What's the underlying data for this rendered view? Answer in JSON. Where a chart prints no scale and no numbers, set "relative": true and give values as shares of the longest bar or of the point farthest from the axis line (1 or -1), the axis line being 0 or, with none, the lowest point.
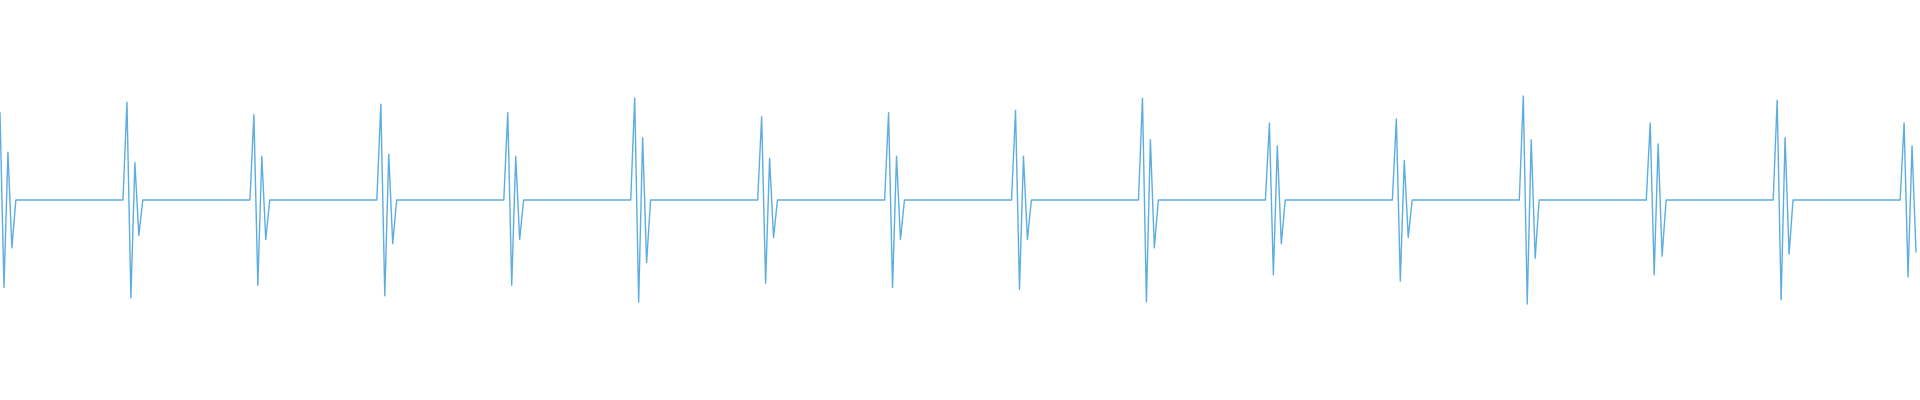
{
  "chart_data": {
    "type": "line",
    "relative": true,
    "categories": [
      null,
      null,
      null,
      null,
      null,
      null,
      null,
      null,
      null,
      null,
      null,
      null,
      null,
      null,
      null,
      null,
      null,
      null,
      null,
      null,
      null,
      null,
      null,
      null,
      null,
      null,
      null,
      null,
      null,
      null,
      null,
      null,
      null,
      null,
      null,
      null,
      null,
      null,
      null,
      null,
      null,
      null,
      null,
      null,
      null,
      null,
      null,
      null,
      null,
      null,
      null,
      null,
      null,
      null,
      null,
      null,
      null,
      null,
      null,
      null,
      null,
      null,
      null,
      null,
      null,
      null,
      null,
      null,
      null,
      null,
      null,
      null,
      null,
      null,
      null,
      null,
      null,
      null,
      null,
      null,
      null,
      null,
      null,
      null,
      null,
      null,
      null,
      null,
      null,
      null,
      null,
      null,
      null,
      null,
      null,
      null,
      null,
      null,
      null,
      null,
      null,
      null,
      null,
      null,
      null,
      null,
      null,
      null,
      null,
      null,
      null,
      null,
      null,
      null,
      null,
      null,
      null,
      null,
      null,
      null,
      null,
      null,
      null,
      null,
      null,
      null,
      null,
      null,
      null,
      null,
      null,
      null,
      null,
      null,
      null,
      null,
      null,
      null,
      null,
      null,
      null,
      null,
      null,
      null,
      null,
      null,
      null,
      null,
      null,
      null,
      null,
      null,
      null,
      null,
      null,
      null,
      null,
      null,
      null,
      null,
      null,
      null,
      null,
      null,
      null,
      null,
      null,
      null,
      null,
      null,
      null,
      null,
      null,
      null,
      null,
      null,
      null,
      null,
      null,
      null,
      null,
      null,
      null,
      null,
      null,
      null,
      null,
      null,
      null,
      null,
      null,
      null,
      null,
      null,
      null,
      null,
      null,
      null,
      null,
      null,
      null,
      null,
      null,
      null,
      null,
      null,
      null,
      null,
      null,
      null,
      null,
      null,
      null,
      null,
      null,
      null,
      null,
      null,
      null,
      null,
      null,
      null,
      null,
      null,
      null,
      null,
      null,
      null,
      null,
      null,
      null,
      null,
      null,
      null,
      null,
      null,
      null,
      null,
      null,
      null,
      null,
      null,
      null,
      null,
      null,
      null,
      null,
      null,
      null,
      null,
      null,
      null,
      null,
      null,
      null,
      null,
      null,
      null,
      null,
      null,
      null,
      null,
      null,
      null,
      null,
      null,
      null,
      null,
      null,
      null,
      null,
      null,
      null,
      null,
      null,
      null,
      null,
      null,
      null,
      null,
      null,
      null,
      null,
      null,
      null,
      null,
      null,
      null,
      null,
      null,
      null,
      null,
      null,
      null,
      null,
      null,
      null,
      null,
      null,
      null,
      null,
      null,
      null,
      null,
      null,
      null,
      null,
      null,
      null,
      null,
      null,
      null,
      null,
      null,
      null,
      null,
      null,
      null,
      null,
      null,
      null,
      null,
      null,
      null,
      null,
      null,
      null,
      null,
      null,
      null,
      null,
      null,
      null,
      null,
      null,
      null,
      null,
      null,
      null,
      null,
      null,
      null,
      null,
      null,
      null,
      null,
      null,
      null,
      null,
      null,
      null,
      null,
      null,
      null,
      null,
      null,
      null,
      null,
      null,
      null,
      null,
      null,
      null,
      null,
      null,
      null,
      null,
      null,
      null,
      null,
      null,
      null,
      null,
      null,
      null,
      null,
      null,
      null,
      null,
      null,
      null,
      null,
      null,
      null,
      null,
      null,
      null,
      null,
      null,
      null,
      null,
      null,
      null,
      null,
      null,
      null,
      null,
      null,
      null,
      null,
      null,
      null,
      null,
      null,
      null,
      null,
      null,
      null,
      null,
      null,
      null,
      null,
      null,
      null,
      null,
      null,
      null,
      null,
      null,
      null,
      null,
      null,
      null,
      null,
      null,
      null,
      null,
      null,
      null,
      null,
      null,
      null,
      null,
      null,
      null,
      null,
      null,
      null,
      null,
      null,
      null,
      null,
      null,
      null,
      null,
      null,
      null,
      null,
      null,
      null,
      null,
      null,
      null,
      null,
      null,
      null,
      null,
      null,
      null,
      null,
      null,
      null,
      null,
      null,
      null,
      null,
      null,
      null,
      null,
      null,
      null,
      null,
      null,
      null,
      null,
      null,
      null,
      null,
      null,
      null,
      null,
      null,
      null,
      null
    ],
    "series": [
      {
        "color": "#5dade2",
        "values": [
          0.92,
          0.08,
          0.73,
          0.27,
          0.5,
          0.5,
          0.5,
          0.5,
          0.5,
          0.5,
          0.5,
          0.5,
          0.5,
          0.5,
          0.5,
          0.5,
          0.5,
          0.5,
          0.5,
          0.5,
          0.5,
          0.5,
          0.5,
          0.5,
          0.5,
          0.5,
          0.5,
          0.5,
          0.5,
          0.5,
          0.5,
          0.5,
          0.97,
          0.03,
          0.68,
          0.33,
          0.5,
          0.5,
          0.5,
          0.5,
          0.5,
          0.5,
          0.5,
          0.5,
          0.5,
          0.5,
          0.5,
          0.5,
          0.5,
          0.5,
          0.5,
          0.5,
          0.5,
          0.5,
          0.5,
          0.5,
          0.5,
          0.5,
          0.5,
          0.5,
          0.5,
          0.5,
          0.5,
          0.5,
          0.91,
          0.09,
          0.71,
          0.31,
          0.5,
          0.5,
          0.5,
          0.5,
          0.5,
          0.5,
          0.5,
          0.5,
          0.5,
          0.5,
          0.5,
          0.5,
          0.5,
          0.5,
          0.5,
          0.5,
          0.5,
          0.5,
          0.5,
          0.5,
          0.5,
          0.5,
          0.5,
          0.5,
          0.5,
          0.5,
          0.5,
          0.5,
          0.96,
          0.04,
          0.72,
          0.29,
          0.5,
          0.5,
          0.5,
          0.5,
          0.5,
          0.5,
          0.5,
          0.5,
          0.5,
          0.5,
          0.5,
          0.5,
          0.5,
          0.5,
          0.5,
          0.5,
          0.5,
          0.5,
          0.5,
          0.5,
          0.5,
          0.5,
          0.5,
          0.5,
          0.5,
          0.5,
          0.5,
          0.5,
          0.92,
          0.09,
          0.71,
          0.31,
          0.5,
          0.5,
          0.5,
          0.5,
          0.5,
          0.5,
          0.5,
          0.5,
          0.5,
          0.5,
          0.5,
          0.5,
          0.5,
          0.5,
          0.5,
          0.5,
          0.5,
          0.5,
          0.5,
          0.5,
          0.5,
          0.5,
          0.5,
          0.5,
          0.5,
          0.5,
          0.5,
          0.5,
          0.99,
          0.01,
          0.8,
          0.2,
          0.5,
          0.5,
          0.5,
          0.5,
          0.5,
          0.5,
          0.5,
          0.5,
          0.5,
          0.5,
          0.5,
          0.5,
          0.5,
          0.5,
          0.5,
          0.5,
          0.5,
          0.5,
          0.5,
          0.5,
          0.5,
          0.5,
          0.5,
          0.5,
          0.5,
          0.5,
          0.5,
          0.5,
          0.9,
          0.1,
          0.7,
          0.32,
          0.5,
          0.5,
          0.5,
          0.5,
          0.5,
          0.5,
          0.5,
          0.5,
          0.5,
          0.5,
          0.5,
          0.5,
          0.5,
          0.5,
          0.5,
          0.5,
          0.5,
          0.5,
          0.5,
          0.5,
          0.5,
          0.5,
          0.5,
          0.5,
          0.5,
          0.5,
          0.5,
          0.5,
          0.92,
          0.08,
          0.71,
          0.31,
          0.5,
          0.5,
          0.5,
          0.5,
          0.5,
          0.5,
          0.5,
          0.5,
          0.5,
          0.5,
          0.5,
          0.5,
          0.5,
          0.5,
          0.5,
          0.5,
          0.5,
          0.5,
          0.5,
          0.5,
          0.5,
          0.5,
          0.5,
          0.5,
          0.5,
          0.5,
          0.5,
          0.5,
          0.93,
          0.07,
          0.71,
          0.31,
          0.5,
          0.5,
          0.5,
          0.5,
          0.5,
          0.5,
          0.5,
          0.5,
          0.5,
          0.5,
          0.5,
          0.5,
          0.5,
          0.5,
          0.5,
          0.5,
          0.5,
          0.5,
          0.5,
          0.5,
          0.5,
          0.5,
          0.5,
          0.5,
          0.5,
          0.5,
          0.5,
          0.5,
          0.99,
          0.01,
          0.79,
          0.27,
          0.5,
          0.5,
          0.5,
          0.5,
          0.5,
          0.5,
          0.5,
          0.5,
          0.5,
          0.5,
          0.5,
          0.5,
          0.5,
          0.5,
          0.5,
          0.5,
          0.5,
          0.5,
          0.5,
          0.5,
          0.5,
          0.5,
          0.5,
          0.5,
          0.5,
          0.5,
          0.5,
          0.5,
          0.87,
          0.14,
          0.76,
          0.29,
          0.5,
          0.5,
          0.5,
          0.5,
          0.5,
          0.5,
          0.5,
          0.5,
          0.5,
          0.5,
          0.5,
          0.5,
          0.5,
          0.5,
          0.5,
          0.5,
          0.5,
          0.5,
          0.5,
          0.5,
          0.5,
          0.5,
          0.5,
          0.5,
          0.5,
          0.5,
          0.5,
          0.5,
          0.89,
          0.11,
          0.69,
          0.32,
          0.5,
          0.5,
          0.5,
          0.5,
          0.5,
          0.5,
          0.5,
          0.5,
          0.5,
          0.5,
          0.5,
          0.5,
          0.5,
          0.5,
          0.5,
          0.5,
          0.5,
          0.5,
          0.5,
          0.5,
          0.5,
          0.5,
          0.5,
          0.5,
          0.5,
          0.5,
          0.5,
          0.5,
          1,
          0,
          0.79,
          0.22,
          0.5,
          0.5,
          0.5,
          0.5,
          0.5,
          0.5,
          0.5,
          0.5,
          0.5,
          0.5,
          0.5,
          0.5,
          0.5,
          0.5,
          0.5,
          0.5,
          0.5,
          0.5,
          0.5,
          0.5,
          0.5,
          0.5,
          0.5,
          0.5,
          0.5,
          0.5,
          0.5,
          0.5,
          0.87,
          0.14,
          0.77,
          0.23,
          0.5,
          0.5,
          0.5,
          0.5,
          0.5,
          0.5,
          0.5,
          0.5,
          0.5,
          0.5,
          0.5,
          0.5,
          0.5,
          0.5,
          0.5,
          0.5,
          0.5,
          0.5,
          0.5,
          0.5,
          0.5,
          0.5,
          0.5,
          0.5,
          0.5,
          0.5,
          0.5,
          0.5,
          0.98,
          0.02,
          0.8,
          0.24,
          0.5,
          0.5,
          0.5,
          0.5,
          0.5,
          0.5,
          0.5,
          0.5,
          0.5,
          0.5,
          0.5,
          0.5,
          0.5,
          0.5,
          0.5,
          0.5,
          0.5,
          0.5,
          0.5,
          0.5,
          0.5,
          0.5,
          0.5,
          0.5,
          0.5,
          0.5,
          0.5,
          0.5,
          0.87,
          0.13,
          0.76,
          0.25
        ]
      }
    ]
  }
}
